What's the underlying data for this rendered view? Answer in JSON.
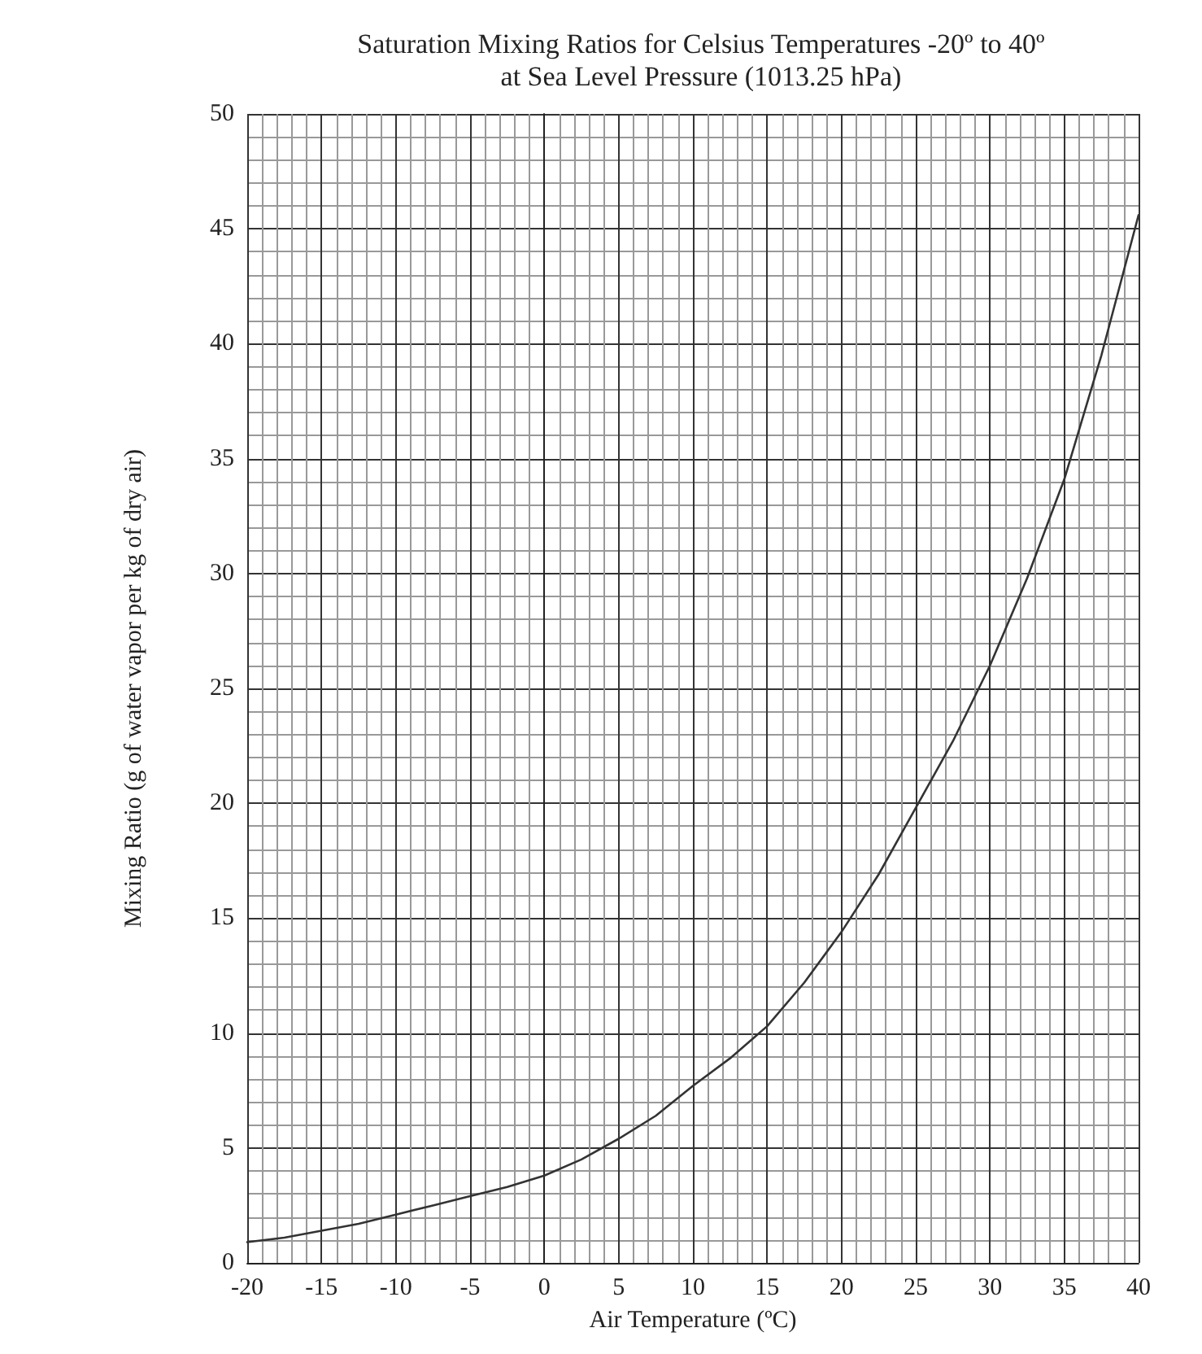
{
  "chart_data": {
    "type": "line",
    "title": "Saturation Mixing Ratios for Celsius Temperatures -20º to 40º\nat Sea Level Pressure (1013.25 hPa)",
    "xlabel": "Air Temperature (ºC)",
    "ylabel": "Mixing Ratio (g of water vapor per kg of dry air)",
    "x": [
      -20,
      -17.5,
      -15,
      -12.5,
      -10,
      -7.5,
      -5,
      -2.5,
      0,
      2.5,
      5,
      7.5,
      10,
      12.5,
      15,
      17.5,
      20,
      22.5,
      25,
      27.5,
      30,
      32.5,
      35,
      37.5,
      40
    ],
    "series": [
      {
        "color": "#333333",
        "values": [
          0.9,
          1.1,
          1.4,
          1.7,
          2.1,
          2.5,
          2.9,
          3.3,
          3.8,
          4.5,
          5.4,
          6.4,
          7.7,
          8.9,
          10.3,
          12.2,
          14.4,
          16.9,
          19.8,
          22.7,
          26.0,
          29.8,
          34.1,
          39.5,
          45.6
        ]
      }
    ],
    "xlim": [
      -20,
      40
    ],
    "ylim": [
      0,
      50
    ],
    "xticks": [
      -20,
      -15,
      -10,
      -5,
      0,
      5,
      10,
      15,
      20,
      25,
      30,
      35,
      40
    ],
    "yticks": [
      0,
      5,
      10,
      15,
      20,
      25,
      30,
      35,
      40,
      45,
      50
    ],
    "grid": true,
    "marker": "none",
    "line_style": "solid"
  }
}
